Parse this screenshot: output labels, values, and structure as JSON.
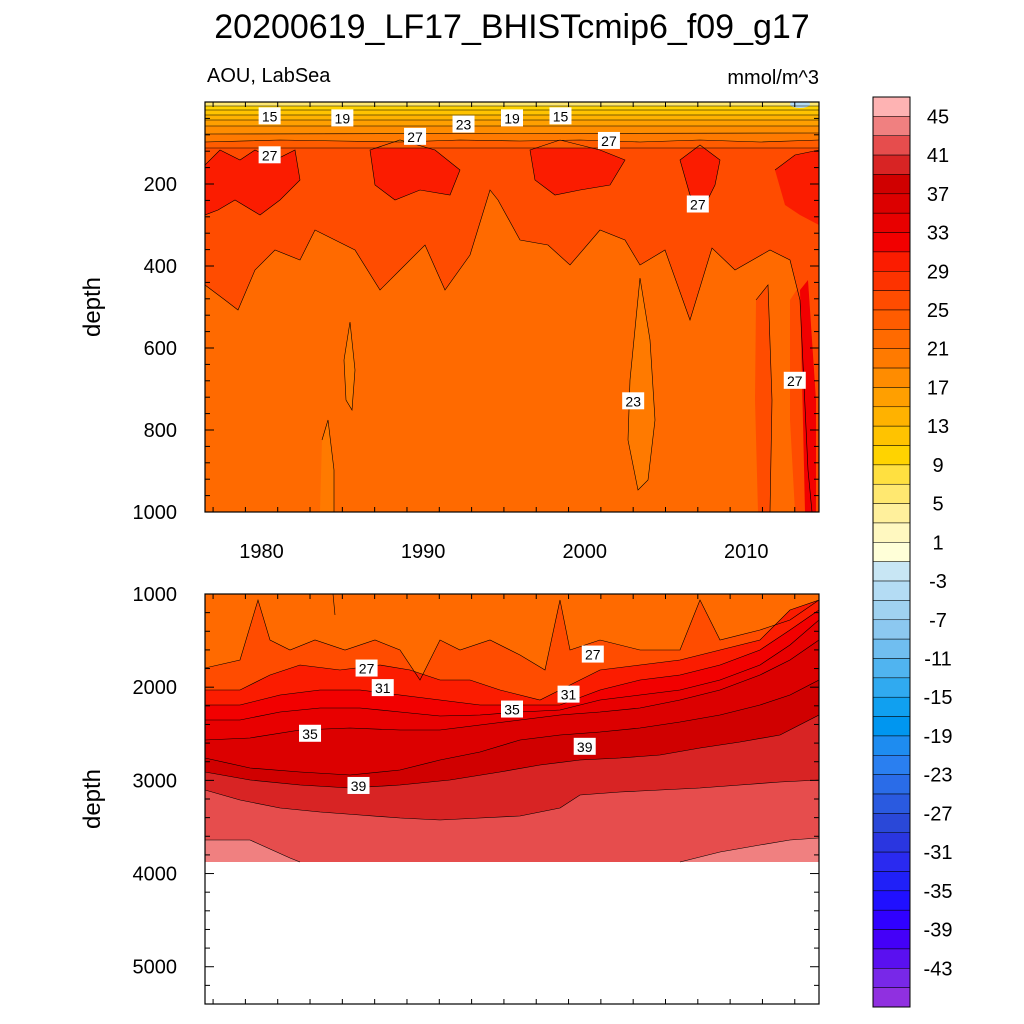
{
  "title": "20200619_LF17_BHISTcmip6_f09_g17",
  "subtitle_left": "AOU, LabSea",
  "subtitle_right": "mmol/m^3",
  "chart_data": [
    {
      "type": "contour",
      "panel": "upper",
      "ylabel": "depth",
      "xlabel": "",
      "xlim": [
        1976.5,
        2014.5
      ],
      "ylim": [
        1000,
        0
      ],
      "x_ticks": [
        1980,
        1990,
        2000,
        2010
      ],
      "x_tick_labels": [
        "1980",
        "1990",
        "2000",
        "2010"
      ],
      "y_ticks": [
        200,
        400,
        600,
        800,
        1000
      ],
      "y_tick_labels": [
        "200",
        "400",
        "600",
        "800",
        "1000"
      ],
      "contour_labels": [
        {
          "text": "15",
          "x": 1980.5,
          "y": 35
        },
        {
          "text": "19",
          "x": 1985,
          "y": 40
        },
        {
          "text": "27",
          "x": 1989.5,
          "y": 85
        },
        {
          "text": "23",
          "x": 1992.5,
          "y": 55
        },
        {
          "text": "19",
          "x": 1995.5,
          "y": 40
        },
        {
          "text": "15",
          "x": 1998.5,
          "y": 35
        },
        {
          "text": "27",
          "x": 1980.5,
          "y": 130
        },
        {
          "text": "27",
          "x": 2001.5,
          "y": 95
        },
        {
          "text": "27",
          "x": 2007,
          "y": 250
        },
        {
          "text": "23",
          "x": 2003,
          "y": 730
        },
        {
          "text": "27",
          "x": 2013,
          "y": 680
        }
      ],
      "description": "AOU mostly 21-25 below 300 m, 27-31 near 150 m, low values near the surface"
    },
    {
      "type": "contour",
      "panel": "lower",
      "ylabel": "depth",
      "xlim": [
        1976.5,
        2014.5
      ],
      "ylim": [
        5400,
        1000
      ],
      "data_bottom": 3870,
      "y_ticks": [
        1000,
        2000,
        3000,
        4000,
        5000
      ],
      "y_tick_labels": [
        "1000",
        "2000",
        "3000",
        "4000",
        "5000"
      ],
      "contour_labels": [
        {
          "text": "27",
          "x": 1986.5,
          "y": 1800
        },
        {
          "text": "31",
          "x": 1987.5,
          "y": 2010
        },
        {
          "text": "35",
          "x": 1995.5,
          "y": 2240
        },
        {
          "text": "31",
          "x": 1999,
          "y": 2080
        },
        {
          "text": "27",
          "x": 2000.5,
          "y": 1650
        },
        {
          "text": "35",
          "x": 1983,
          "y": 2500
        },
        {
          "text": "39",
          "x": 2000,
          "y": 2640
        },
        {
          "text": "39",
          "x": 1986,
          "y": 3060
        }
      ],
      "description": "AOU increasing with depth from about 23 at 1000 m to 43-45 at 3900 m; no data below 3870 m"
    }
  ],
  "colorbar": {
    "levels": [
      45,
      43,
      41,
      39,
      37,
      35,
      33,
      31,
      29,
      27,
      25,
      23,
      21,
      19,
      17,
      15,
      13,
      11,
      9,
      7,
      5,
      3,
      1,
      -1,
      -3,
      -5,
      -7,
      -9,
      -11,
      -13,
      -15,
      -17,
      -19,
      -21,
      -23,
      -25,
      -27,
      -29,
      -31,
      -33,
      -35,
      -37,
      -39,
      -41,
      -43,
      -45
    ],
    "labels": [
      "45",
      "41",
      "37",
      "33",
      "29",
      "25",
      "21",
      "17",
      "13",
      "9",
      "5",
      "1",
      "-3",
      "-7",
      "-11",
      "-15",
      "-19",
      "-23",
      "-27",
      "-31",
      "-35",
      "-39",
      "-43"
    ],
    "colors": [
      "#feb3b3",
      "#f08080",
      "#e64d4d",
      "#d82424",
      "#d00000",
      "#dc0000",
      "#e80000",
      "#f20000",
      "#fb1c00",
      "#fd3300",
      "#ff4c00",
      "#ff5c00",
      "#ff6a00",
      "#ff7a00",
      "#ff8c00",
      "#ff9f00",
      "#ffb200",
      "#ffc300",
      "#ffd300",
      "#ffe040",
      "#ffe870",
      "#fff09c",
      "#fff8c0",
      "#ffffd8",
      "#c8e6f4",
      "#b4dcf4",
      "#a0d2f0",
      "#8cc8f0",
      "#70bef0",
      "#50b4f0",
      "#30aaf0",
      "#10a0f0",
      "#0096f0",
      "#1e8cf0",
      "#2a7ff0",
      "#2a6ce8",
      "#2a5ae0",
      "#2a48d8",
      "#2a36e0",
      "#2a2af0",
      "#2020f8",
      "#2010ff",
      "#3000ff",
      "#4400f8",
      "#5a10f0",
      "#7828e8",
      "#9030e0"
    ]
  }
}
